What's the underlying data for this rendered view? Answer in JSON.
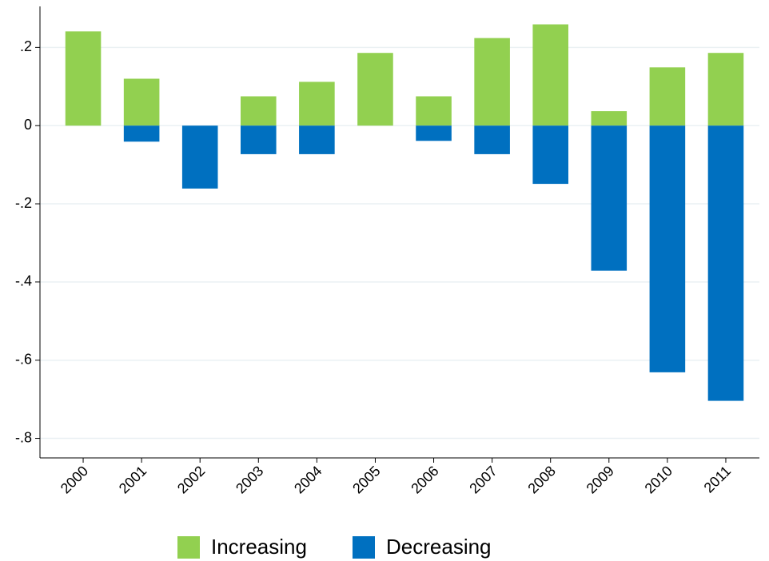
{
  "chart_data": {
    "type": "bar",
    "categories": [
      "2000",
      "2001",
      "2002",
      "2003",
      "2004",
      "2005",
      "2006",
      "2007",
      "2008",
      "2009",
      "2010",
      "2011"
    ],
    "series": [
      {
        "name": "Increasing",
        "color": "#92d050",
        "values": [
          0.241,
          0.12,
          0,
          0.075,
          0.112,
          0.186,
          0.075,
          0.224,
          0.259,
          0.037,
          0.149,
          0.186
        ]
      },
      {
        "name": "Decreasing",
        "color": "#0070c0",
        "values": [
          0,
          -0.041,
          -0.161,
          -0.073,
          -0.073,
          0,
          -0.039,
          -0.073,
          -0.149,
          -0.371,
          -0.631,
          -0.704
        ]
      }
    ],
    "ylim": [
      -0.85,
      0.305
    ],
    "yticks": [
      {
        "value": 0.2,
        "label": ".2"
      },
      0,
      {
        "value": -0.2,
        "label": "-.2"
      },
      {
        "value": -0.4,
        "label": "-.4"
      },
      {
        "value": -0.6,
        "label": "-.6"
      },
      {
        "value": -0.8,
        "label": "-.8"
      }
    ],
    "grid": true
  }
}
